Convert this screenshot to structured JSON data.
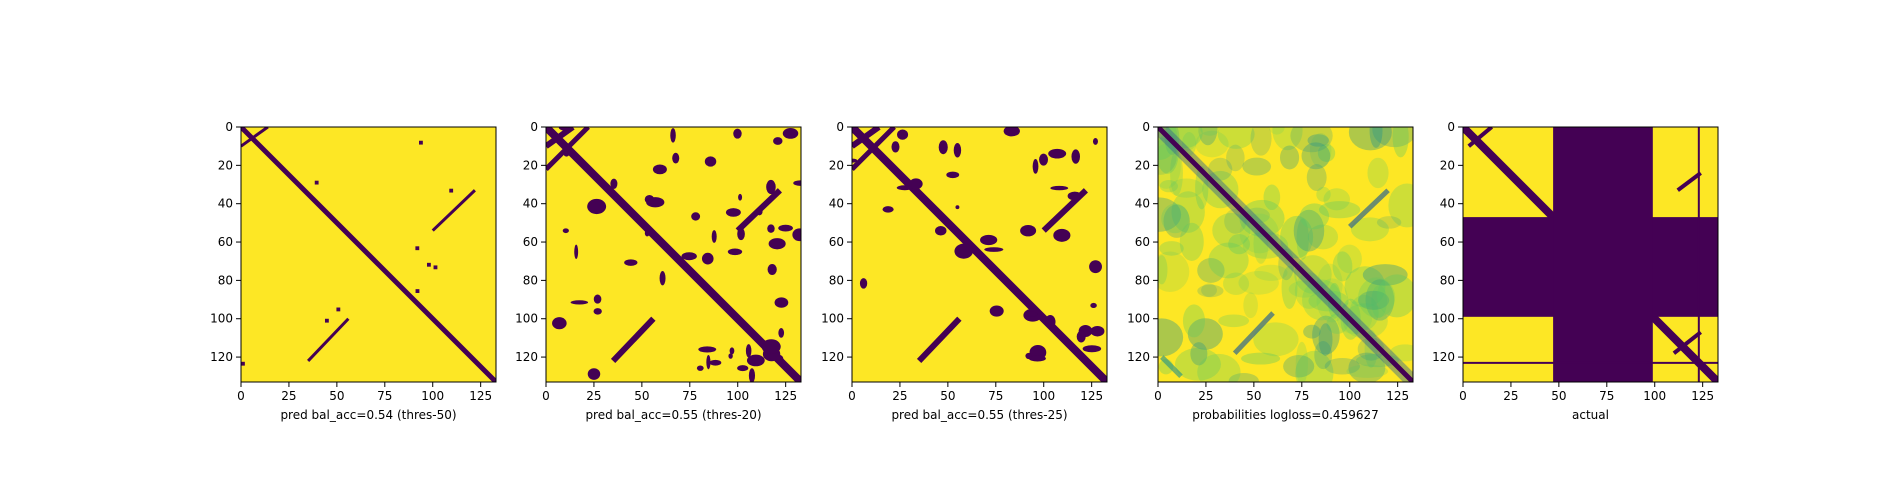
{
  "colors": {
    "viridis_dark": "#440154",
    "viridis_mid_blue": "#31688e",
    "viridis_teal": "#21918c",
    "viridis_green": "#5ec962",
    "viridis_yellow": "#fde725",
    "axis": "#000000",
    "background": "#ffffff"
  },
  "chart_data": [
    {
      "type": "heatmap",
      "xlabel": "pred bal_acc=0.54 (thres-50)",
      "xticks": [
        0,
        25,
        50,
        75,
        100,
        125
      ],
      "yticks": [
        0,
        20,
        40,
        60,
        80,
        100,
        120
      ],
      "xlim": [
        0,
        133
      ],
      "ylim": [
        133,
        0
      ],
      "matrix_size": 133,
      "colormap": "viridis",
      "description_values": "binary contact prediction; main diagonal band plus off-diagonal anti-parallel strands near (35-55,110-125)"
    },
    {
      "type": "heatmap",
      "xlabel": "pred bal_acc=0.55 (thres-20)",
      "xticks": [
        0,
        25,
        50,
        75,
        100,
        125
      ],
      "yticks": [
        0,
        20,
        40,
        60,
        80,
        100,
        120
      ],
      "xlim": [
        0,
        133
      ],
      "ylim": [
        133,
        0
      ],
      "matrix_size": 133,
      "colormap": "viridis"
    },
    {
      "type": "heatmap",
      "xlabel": "pred bal_acc=0.55 (thres-25)",
      "xticks": [
        0,
        25,
        50,
        75,
        100,
        125
      ],
      "yticks": [
        0,
        20,
        40,
        60,
        80,
        100,
        120
      ],
      "xlim": [
        0,
        133
      ],
      "ylim": [
        133,
        0
      ],
      "matrix_size": 133,
      "colormap": "viridis"
    },
    {
      "type": "heatmap",
      "xlabel": "probabilities logloss=0.459627",
      "xticks": [
        0,
        25,
        50,
        75,
        100,
        125
      ],
      "yticks": [
        0,
        20,
        40,
        60,
        80,
        100,
        120
      ],
      "xlim": [
        0,
        133
      ],
      "ylim": [
        133,
        0
      ],
      "matrix_size": 133,
      "colormap": "viridis"
    },
    {
      "type": "heatmap",
      "xlabel": "actual",
      "xticks": [
        0,
        25,
        50,
        75,
        100,
        125
      ],
      "yticks": [
        0,
        20,
        40,
        60,
        80,
        100,
        120
      ],
      "xlim": [
        0,
        133
      ],
      "ylim": [
        133,
        0
      ],
      "matrix_size": 133,
      "colormap": "viridis",
      "masked_rows": [
        47,
        99
      ],
      "masked_cols": [
        47,
        99
      ]
    }
  ]
}
